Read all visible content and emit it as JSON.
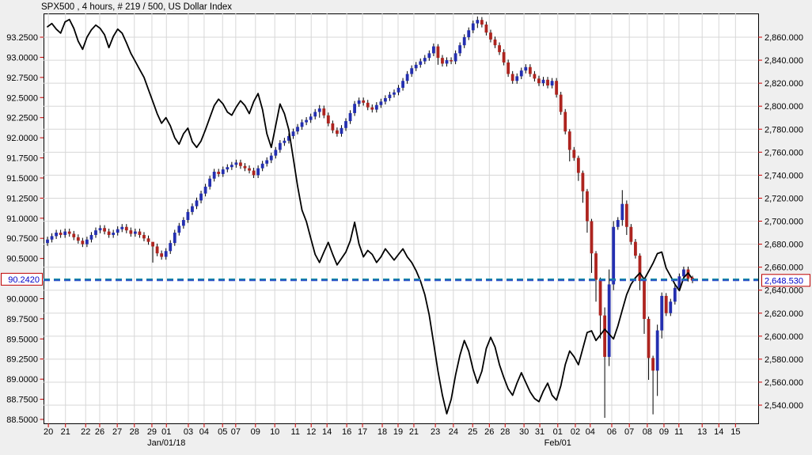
{
  "title": "SPX500 , 4 hours, # 219 / 500, US Dollar Index",
  "colors": {
    "background": "#efefef",
    "plot_background": "#ffffff",
    "plot_border": "#000000",
    "grid": "#d7d7d7",
    "axis_tick": "#cc0000",
    "axis_label": "#000000",
    "candle_up": "#242fb0",
    "candle_down": "#ad241f",
    "candle_wick": "#000000",
    "index_line": "#000000",
    "dashed_level_left": "#0e8da0",
    "dashed_level_right": "#2f55c8",
    "current_box_border": "#c00000",
    "current_box_fill": "#ffffff",
    "current_box_text": "#0000c8",
    "end_marker": "#cc0000"
  },
  "chart_data": {
    "type": "candlestick+line",
    "title": "SPX500 , 4 hours, # 219 / 500, US Dollar Index",
    "legend_position": "none",
    "grid": "horizontal gridlines follow right axis steps; vertical gridlines at date ticks",
    "right_axis": {
      "name": "SPX500",
      "min": 2540,
      "max": 2860,
      "step": 20,
      "labels": [
        "2,860.000",
        "2,840.000",
        "2,820.000",
        "2,800.000",
        "2,780.000",
        "2,760.000",
        "2,740.000",
        "2,720.000",
        "2,700.000",
        "2,680.000",
        "2,660.000",
        "2,640.000",
        "2,620.000",
        "2,600.000",
        "2,580.000",
        "2,560.000",
        "2,540.000"
      ],
      "current_value": 2648.53,
      "current_label": "2,648.530"
    },
    "left_axis": {
      "name": "US Dollar Index",
      "min": 88.5,
      "max": 93.25,
      "step": 0.25,
      "skip_label": 90.25,
      "labels": [
        "93.2500",
        "93.0000",
        "92.7500",
        "92.5000",
        "92.2500",
        "92.0000",
        "91.7500",
        "91.5000",
        "91.2500",
        "91.0000",
        "90.7500",
        "90.5000",
        "90.0000",
        "89.7500",
        "89.5000",
        "89.2500",
        "89.0000",
        "88.7500",
        "88.5000"
      ],
      "current_value": 90.242,
      "current_label": "90.2420"
    },
    "x_axis": {
      "ticks": [
        {
          "t": "20",
          "i": 0.2
        },
        {
          "t": "21",
          "i": 4.1
        },
        {
          "t": "22",
          "i": 8.7
        },
        {
          "t": "26",
          "i": 11.9
        },
        {
          "t": "27",
          "i": 15.9
        },
        {
          "t": "28",
          "i": 19.8
        },
        {
          "t": "29",
          "i": 23.8
        },
        {
          "t": "01",
          "i": 27.1
        },
        {
          "t": "03",
          "i": 32.1
        },
        {
          "t": "04",
          "i": 35.7
        },
        {
          "t": "05",
          "i": 39.9
        },
        {
          "t": "07",
          "i": 42.9
        },
        {
          "t": "09",
          "i": 47.4
        },
        {
          "t": "10",
          "i": 51.8
        },
        {
          "t": "11",
          "i": 56.5
        },
        {
          "t": "12",
          "i": 60.1
        },
        {
          "t": "14",
          "i": 63.7
        },
        {
          "t": "16",
          "i": 68.2
        },
        {
          "t": "17",
          "i": 71.8
        },
        {
          "t": "18",
          "i": 76.3
        },
        {
          "t": "19",
          "i": 79.9
        },
        {
          "t": "21",
          "i": 83.5
        },
        {
          "t": "23",
          "i": 88.4
        },
        {
          "t": "24",
          "i": 92.5
        },
        {
          "t": "25",
          "i": 96.9
        },
        {
          "t": "26",
          "i": 100.7
        },
        {
          "t": "28",
          "i": 104.3
        },
        {
          "t": "30",
          "i": 108.6
        },
        {
          "t": "31",
          "i": 112.2
        },
        {
          "t": "01",
          "i": 116.3
        },
        {
          "t": "02",
          "i": 120.3
        },
        {
          "t": "04",
          "i": 123.7
        },
        {
          "t": "06",
          "i": 128.6
        },
        {
          "t": "07",
          "i": 132.6
        },
        {
          "t": "08",
          "i": 136.7
        },
        {
          "t": "09",
          "i": 140.5
        },
        {
          "t": "11",
          "i": 143.9
        },
        {
          "t": "13",
          "i": 149.2
        },
        {
          "t": "14",
          "i": 153.0
        },
        {
          "t": "15",
          "i": 156.8
        }
      ],
      "periods": [
        {
          "t": "Jan/01/18",
          "i": 27.1
        },
        {
          "t": "Feb/01",
          "i": 116.3
        }
      ]
    },
    "series": [
      {
        "name": "SPX500",
        "type": "candlestick",
        "axis": "right",
        "first_open": 2681,
        "default_wick": 2.5,
        "closes": [
          2684,
          2687,
          2690,
          2688,
          2691,
          2689,
          2686,
          2683,
          2680,
          2684,
          2688,
          2692,
          2694,
          2691,
          2688,
          2690,
          2693,
          2695,
          2692,
          2689,
          2691,
          2688,
          2685,
          2682,
          2678,
          2672,
          2669,
          2674,
          2681,
          2690,
          2696,
          2701,
          2708,
          2713,
          2718,
          2724,
          2730,
          2737,
          2743,
          2741,
          2745,
          2747,
          2749,
          2751,
          2748,
          2746,
          2744,
          2740,
          2746,
          2750,
          2753,
          2757,
          2762,
          2768,
          2770,
          2774,
          2778,
          2782,
          2786,
          2788,
          2791,
          2795,
          2798,
          2792,
          2785,
          2779,
          2776,
          2781,
          2787,
          2794,
          2802,
          2805,
          2803,
          2799,
          2797,
          2801,
          2804,
          2807,
          2810,
          2812,
          2816,
          2822,
          2828,
          2833,
          2836,
          2839,
          2842,
          2846,
          2852,
          2842,
          2837,
          2840,
          2839,
          2846,
          2853,
          2860,
          2866,
          2872,
          2875,
          2871,
          2864,
          2858,
          2853,
          2847,
          2838,
          2828,
          2822,
          2826,
          2831,
          2834,
          2828,
          2824,
          2820,
          2823,
          2818,
          2822,
          2810,
          2795,
          2778,
          2762,
          2755,
          2742,
          2726,
          2700,
          2672,
          2649,
          2618,
          2582,
          2645,
          2695,
          2701,
          2715,
          2695,
          2682,
          2670,
          2648,
          2615,
          2581,
          2570,
          2605,
          2635,
          2620,
          2630,
          2642,
          2652,
          2658,
          2650,
          2648.53
        ],
        "wick_overrides": {
          "24": [
            2681,
            2664
          ],
          "62": [
            2801,
            2790
          ],
          "89": [
            2854,
            2836
          ],
          "98": [
            2878,
            2868
          ],
          "119": [
            2780,
            2752
          ],
          "121": [
            2757,
            2735
          ],
          "122": [
            2744,
            2716
          ],
          "123": [
            2728,
            2690
          ],
          "124": [
            2702,
            2655
          ],
          "125": [
            2674,
            2630
          ],
          "126": [
            2651,
            2598
          ],
          "127": [
            2625,
            2529
          ],
          "128": [
            2658,
            2574
          ],
          "129": [
            2700,
            2640
          ],
          "131": [
            2727,
            2696
          ],
          "132": [
            2718,
            2688
          ],
          "135": [
            2672,
            2640
          ],
          "136": [
            2650,
            2602
          ],
          "137": [
            2617,
            2562
          ],
          "138": [
            2583,
            2532
          ],
          "139": [
            2610,
            2548
          ],
          "140": [
            2638,
            2598
          ]
        }
      },
      {
        "name": "US Dollar Index",
        "type": "line",
        "axis": "left",
        "values": [
          93.38,
          93.42,
          93.35,
          93.3,
          93.44,
          93.47,
          93.36,
          93.2,
          93.1,
          93.25,
          93.34,
          93.4,
          93.36,
          93.28,
          93.12,
          93.26,
          93.35,
          93.3,
          93.18,
          93.05,
          92.95,
          92.85,
          92.75,
          92.6,
          92.45,
          92.3,
          92.18,
          92.25,
          92.15,
          92.0,
          91.92,
          92.05,
          92.12,
          91.95,
          91.88,
          91.96,
          92.1,
          92.25,
          92.4,
          92.48,
          92.42,
          92.32,
          92.28,
          92.38,
          92.46,
          92.4,
          92.3,
          92.45,
          92.55,
          92.35,
          92.05,
          91.88,
          92.15,
          92.42,
          92.3,
          92.1,
          91.75,
          91.4,
          91.1,
          90.96,
          90.75,
          90.55,
          90.45,
          90.58,
          90.7,
          90.55,
          90.42,
          90.5,
          90.58,
          90.72,
          90.95,
          90.68,
          90.52,
          90.6,
          90.55,
          90.45,
          90.52,
          90.62,
          90.55,
          90.48,
          90.55,
          90.62,
          90.52,
          90.45,
          90.35,
          90.22,
          90.05,
          89.8,
          89.45,
          89.1,
          88.8,
          88.57,
          88.75,
          89.05,
          89.3,
          89.48,
          89.35,
          89.12,
          88.95,
          89.1,
          89.38,
          89.52,
          89.4,
          89.18,
          89.02,
          88.88,
          88.8,
          88.95,
          89.08,
          88.96,
          88.84,
          88.76,
          88.72,
          88.85,
          88.95,
          88.8,
          88.74,
          88.92,
          89.18,
          89.35,
          89.28,
          89.18,
          89.38,
          89.58,
          89.6,
          89.48,
          89.55,
          89.62,
          89.56,
          89.5,
          89.66,
          89.86,
          90.05,
          90.18,
          90.26,
          90.32,
          90.24,
          90.34,
          90.44,
          90.56,
          90.58,
          90.38,
          90.28,
          90.18,
          90.1,
          90.26,
          90.32,
          90.242
        ]
      }
    ]
  }
}
